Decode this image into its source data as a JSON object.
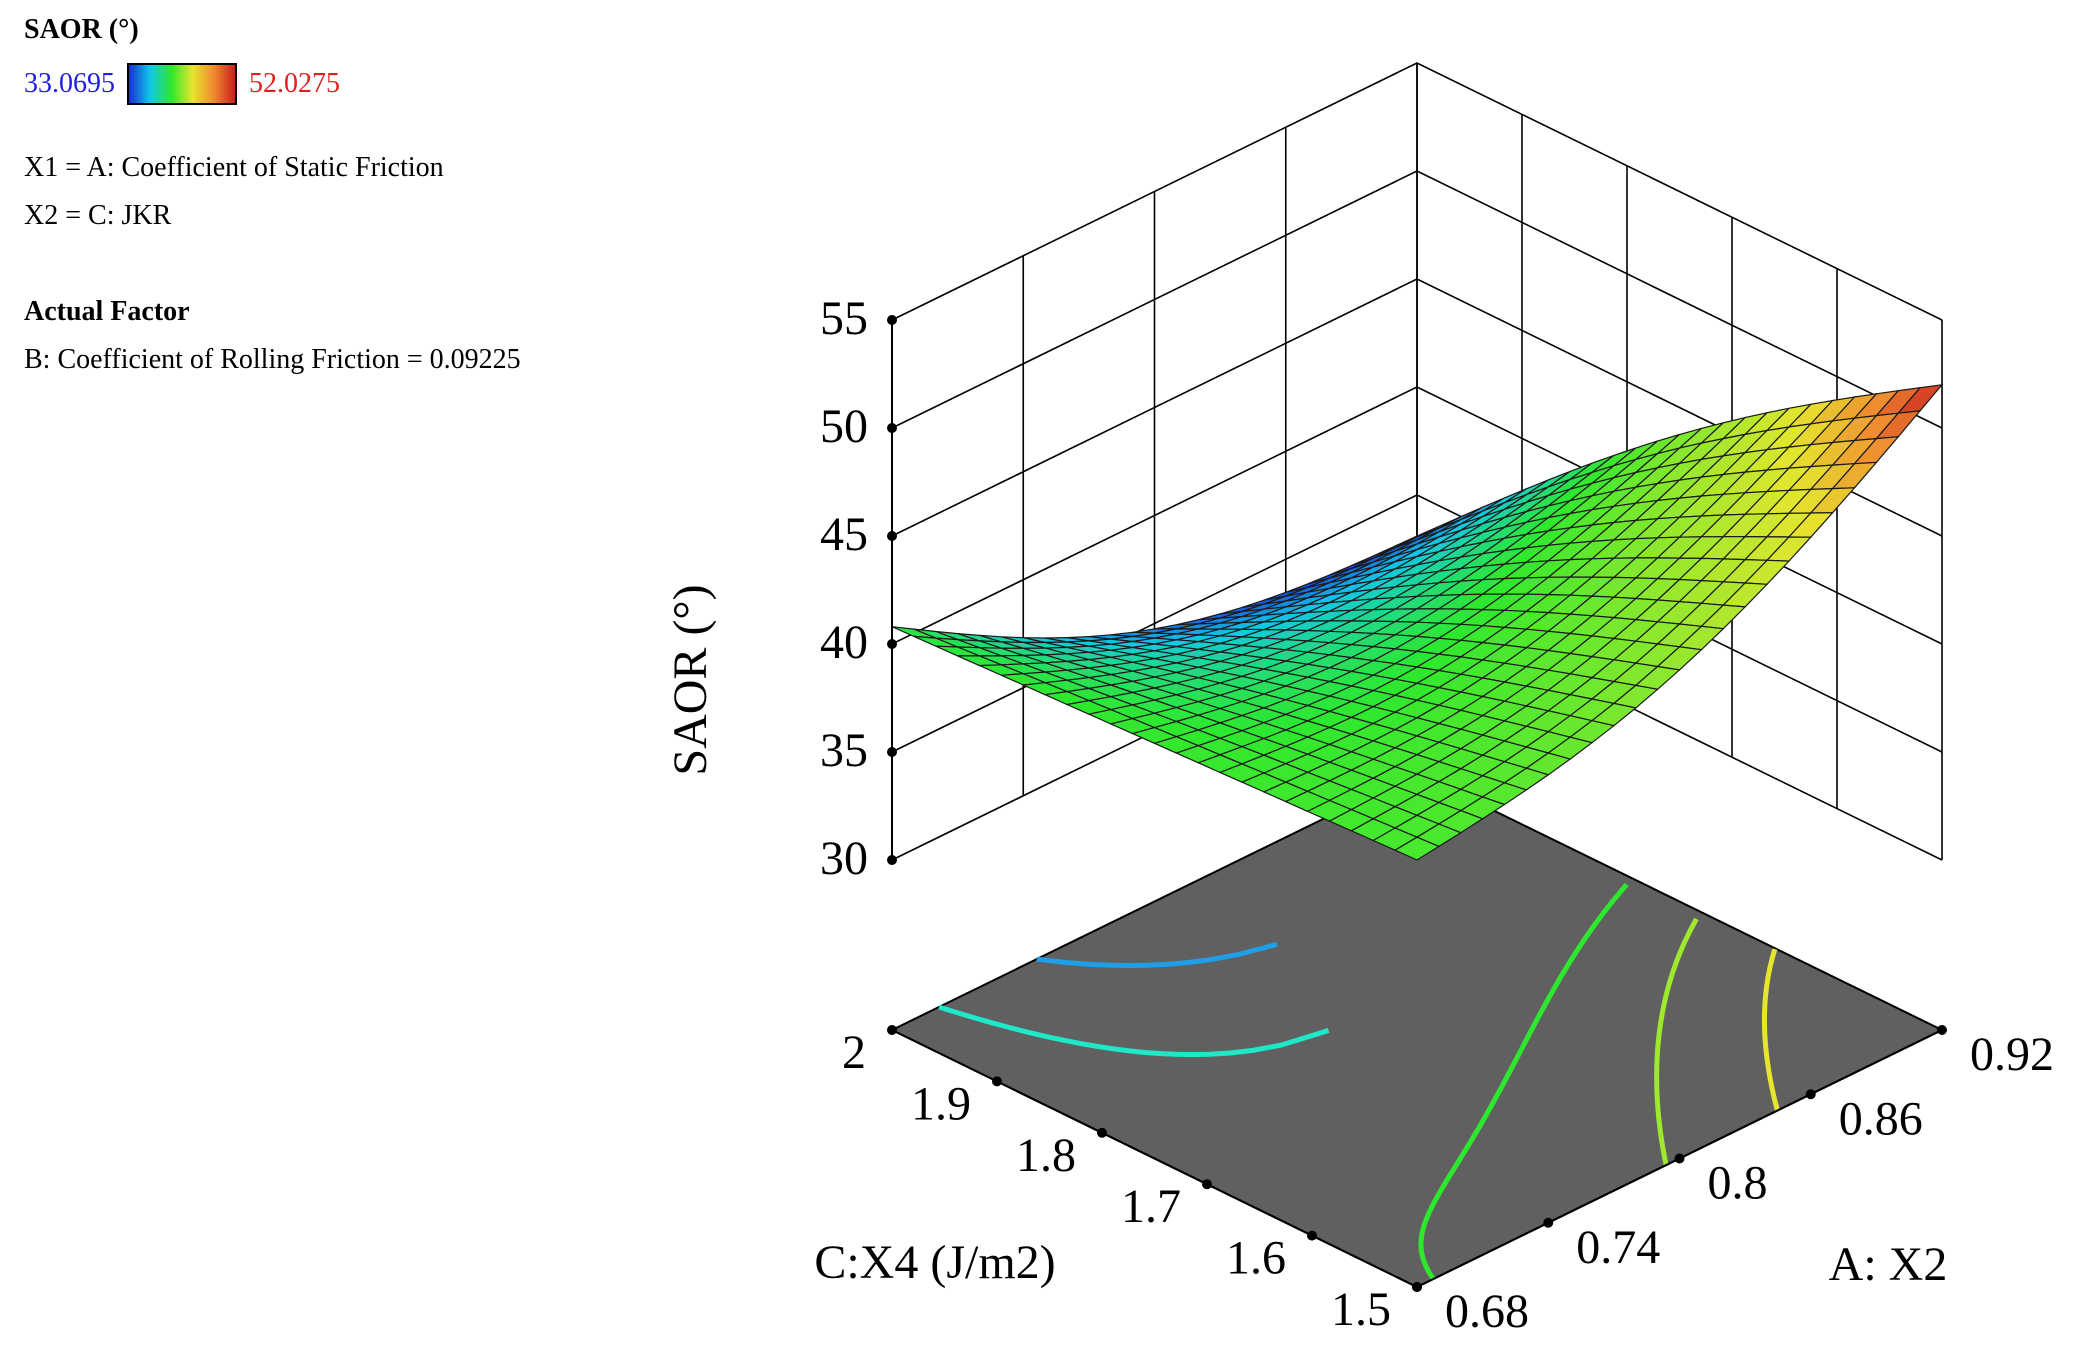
{
  "legend": {
    "title": "SAOR (°)",
    "min_label": "33.0695",
    "max_label": "52.0275",
    "min_color": "#1f1fe0",
    "max_color": "#e01f1f"
  },
  "factors": {
    "x1": "X1 = A: Coefficient of Static Friction",
    "x2": "X2 = C: JKR",
    "actual_title": "Actual Factor",
    "actual_value": "B: Coefficient of Rolling Friction = 0.09225"
  },
  "chart_data": {
    "type": "surface",
    "title": "",
    "zlabel": "SAOR (°)",
    "xlabel": "A: X2",
    "ylabel": "C:X4 (J/m2)",
    "x_range": [
      0.68,
      0.92
    ],
    "y_range": [
      1.5,
      2.0
    ],
    "z_range": [
      30,
      55
    ],
    "x_ticks": [
      "0.68",
      "0.74",
      "0.8",
      "0.86",
      "0.92"
    ],
    "x_tick_values": [
      0.68,
      0.74,
      0.8,
      0.86,
      0.92
    ],
    "y_ticks": [
      "1.5",
      "1.6",
      "1.7",
      "1.8",
      "1.9",
      "2"
    ],
    "y_tick_values": [
      1.5,
      1.6,
      1.7,
      1.8,
      1.9,
      2.0
    ],
    "z_ticks": [
      "30",
      "35",
      "40",
      "45",
      "50",
      "55"
    ],
    "z_tick_values": [
      30,
      35,
      40,
      45,
      50,
      55
    ],
    "color_range": [
      33.0695,
      52.0275
    ],
    "corner_values": {
      "A_0.68_C_1.5": 41.9,
      "A_0.92_C_1.5": 52.0,
      "A_0.68_C_2.0": 40.8,
      "A_0.92_C_2.0": 33.1
    },
    "floor_color": "#606060",
    "contours": [
      {
        "level": 37.0,
        "color": "#1e9fe8"
      },
      {
        "level": 39.5,
        "color": "#1ee8c8"
      },
      {
        "level": 42.0,
        "color": "#2ee82e"
      },
      {
        "level": 44.5,
        "color": "#9ee82e"
      },
      {
        "level": 47.0,
        "color": "#e6e62e"
      }
    ]
  }
}
